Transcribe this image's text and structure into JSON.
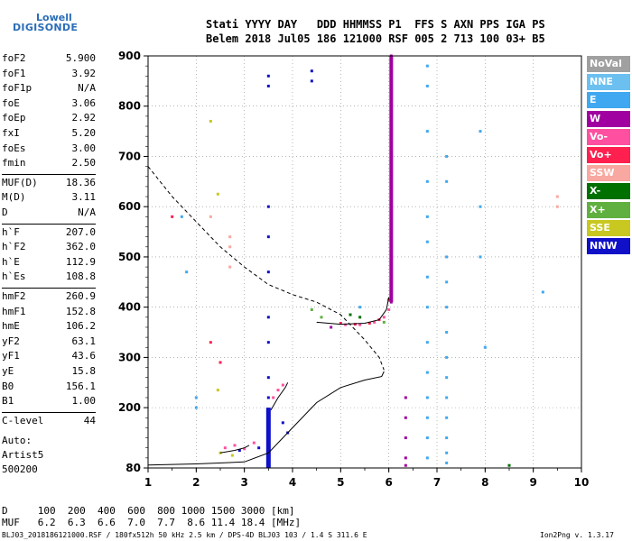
{
  "logo": {
    "top": "Lowell",
    "bottom": "DIGISONDE"
  },
  "header": {
    "line1": "Stati YYYY DAY   DDD HHMMSS P1  FFS S AXN PPS IGA PS",
    "line2": "Belem 2018 Jul05 186 121000 RSF 005 2 713 100 03+ B5"
  },
  "params": [
    {
      "label": "foF2",
      "value": "5.900"
    },
    {
      "label": "foF1",
      "value": "3.92"
    },
    {
      "label": "foF1p",
      "value": "N/A"
    },
    {
      "label": "foE",
      "value": "3.06"
    },
    {
      "label": "foEp",
      "value": "2.92"
    },
    {
      "label": "fxI",
      "value": "5.20"
    },
    {
      "label": "foEs",
      "value": "3.00"
    },
    {
      "label": "fmin",
      "value": "2.50"
    },
    {
      "label": "MUF(D)",
      "value": "18.36"
    },
    {
      "label": "M(D)",
      "value": "3.11"
    },
    {
      "label": "D",
      "value": "N/A"
    },
    {
      "label": "h`F",
      "value": "207.0"
    },
    {
      "label": "h`F2",
      "value": "362.0"
    },
    {
      "label": "h`E",
      "value": "112.9"
    },
    {
      "label": "h`Es",
      "value": "108.8"
    },
    {
      "label": "hmF2",
      "value": "260.9"
    },
    {
      "label": "hmF1",
      "value": "152.8"
    },
    {
      "label": "hmE",
      "value": "106.2"
    },
    {
      "label": "yF2",
      "value": "63.1"
    },
    {
      "label": "yF1",
      "value": "43.6"
    },
    {
      "label": "yE",
      "value": "15.8"
    },
    {
      "label": "B0",
      "value": "156.1"
    },
    {
      "label": "B1",
      "value": "1.00"
    },
    {
      "label": "C-level",
      "value": "44"
    }
  ],
  "extra": {
    "auto": "Auto:",
    "artist": "Artist5",
    "version": "500200"
  },
  "legend": [
    {
      "label": "NoVal",
      "color": "#a0a0a0"
    },
    {
      "label": "NNE",
      "color": "#6cc0f0"
    },
    {
      "label": "E",
      "color": "#40a8f0"
    },
    {
      "label": "W",
      "color": "#a000a0"
    },
    {
      "label": "Vo-",
      "color": "#ff4fa0"
    },
    {
      "label": "Vo+",
      "color": "#ff2050"
    },
    {
      "label": "SSW",
      "color": "#f8a8a0"
    },
    {
      "label": "X-",
      "color": "#007000"
    },
    {
      "label": "X+",
      "color": "#60b040"
    },
    {
      "label": "SSE",
      "color": "#c8c820"
    },
    {
      "label": "NNW",
      "color": "#1010c8"
    }
  ],
  "bottom": {
    "dist_line": "D     100  200  400  600  800 1000 1500 3000 [km]",
    "muf_line": "MUF   6.2  6.3  6.6  7.0  7.7  8.6 11.4 18.4 [MHz]",
    "footer_left": "BLJ03_2018186121000.RSF / 180fx512h 50 kHz 2.5 km / DPS-4D BLJ03 103 / 1.4 S 311.6 E",
    "footer_right": "Ion2Png v. 1.3.17"
  },
  "chart_data": {
    "type": "scatter",
    "title": "",
    "xlabel": "",
    "ylabel": "",
    "xlim": [
      1,
      10
    ],
    "ylim": [
      80,
      900
    ],
    "xticks": [
      "1",
      "2",
      "3",
      "4",
      "5",
      "6",
      "7",
      "8",
      "9",
      "10"
    ],
    "yticks": [
      "80",
      "200",
      "300",
      "400",
      "500",
      "600",
      "700",
      "800",
      "900"
    ],
    "series": [
      {
        "name": "NNW",
        "color": "#1010c8",
        "points": [
          [
            3.5,
            840
          ],
          [
            3.5,
            860
          ],
          [
            3.5,
            600
          ],
          [
            3.5,
            540
          ],
          [
            3.5,
            470
          ],
          [
            3.5,
            380
          ],
          [
            3.5,
            330
          ],
          [
            3.5,
            260
          ],
          [
            3.5,
            220
          ],
          [
            3.5,
            160
          ],
          [
            3.5,
            120
          ],
          [
            3.5,
            100
          ],
          [
            3.5,
            90
          ],
          [
            4.4,
            870
          ],
          [
            4.4,
            850
          ],
          [
            3.8,
            170
          ],
          [
            3.9,
            150
          ],
          [
            3.3,
            120
          ],
          [
            2.9,
            115
          ]
        ]
      },
      {
        "name": "W",
        "color": "#a000a0",
        "points": [
          [
            6.05,
            900
          ],
          [
            6.05,
            850
          ],
          [
            6.05,
            800
          ],
          [
            6.05,
            750
          ],
          [
            6.05,
            700
          ],
          [
            6.05,
            650
          ],
          [
            6.05,
            600
          ],
          [
            6.05,
            550
          ],
          [
            6.05,
            500
          ],
          [
            6.05,
            450
          ],
          [
            6.05,
            410
          ],
          [
            6.35,
            220
          ],
          [
            6.35,
            180
          ],
          [
            6.35,
            140
          ],
          [
            6.35,
            100
          ],
          [
            6.35,
            85
          ],
          [
            4.8,
            360
          ]
        ]
      },
      {
        "name": "E",
        "color": "#40a8f0",
        "points": [
          [
            6.8,
            880
          ],
          [
            6.8,
            840
          ],
          [
            6.8,
            750
          ],
          [
            6.8,
            650
          ],
          [
            6.8,
            580
          ],
          [
            6.8,
            530
          ],
          [
            6.8,
            460
          ],
          [
            6.8,
            400
          ],
          [
            6.8,
            330
          ],
          [
            6.8,
            270
          ],
          [
            6.8,
            220
          ],
          [
            6.8,
            180
          ],
          [
            6.8,
            140
          ],
          [
            6.8,
            100
          ],
          [
            7.2,
            700
          ],
          [
            7.2,
            650
          ],
          [
            7.2,
            500
          ],
          [
            7.2,
            450
          ],
          [
            7.2,
            400
          ],
          [
            7.2,
            350
          ],
          [
            7.2,
            300
          ],
          [
            7.2,
            260
          ],
          [
            7.2,
            220
          ],
          [
            7.2,
            180
          ],
          [
            7.2,
            140
          ],
          [
            7.2,
            110
          ],
          [
            7.2,
            90
          ],
          [
            7.9,
            750
          ],
          [
            7.9,
            600
          ],
          [
            7.9,
            500
          ],
          [
            5.4,
            400
          ],
          [
            8.0,
            320
          ],
          [
            9.2,
            430
          ],
          [
            1.7,
            580
          ],
          [
            1.8,
            470
          ],
          [
            2.0,
            220
          ],
          [
            2.0,
            200
          ]
        ]
      },
      {
        "name": "Vo-",
        "color": "#ff4fa0",
        "points": [
          [
            2.6,
            120
          ],
          [
            2.8,
            125
          ],
          [
            3.0,
            118
          ],
          [
            3.2,
            130
          ],
          [
            3.6,
            220
          ],
          [
            3.7,
            235
          ],
          [
            3.8,
            245
          ],
          [
            5.1,
            365
          ],
          [
            5.4,
            365
          ],
          [
            5.7,
            370
          ],
          [
            5.9,
            380
          ],
          [
            6.0,
            395
          ]
        ]
      },
      {
        "name": "Vo+",
        "color": "#ff2050",
        "points": [
          [
            5.0,
            368
          ],
          [
            5.3,
            366
          ],
          [
            5.6,
            368
          ],
          [
            5.8,
            375
          ],
          [
            6.0,
            415
          ],
          [
            1.5,
            580
          ],
          [
            2.3,
            330
          ],
          [
            2.5,
            290
          ]
        ]
      },
      {
        "name": "SSW",
        "color": "#f8a8a0",
        "points": [
          [
            2.7,
            540
          ],
          [
            2.7,
            520
          ],
          [
            2.7,
            480
          ],
          [
            9.5,
            620
          ],
          [
            9.5,
            600
          ],
          [
            2.3,
            580
          ]
        ]
      },
      {
        "name": "X-",
        "color": "#007000",
        "points": [
          [
            5.2,
            385
          ],
          [
            5.4,
            380
          ],
          [
            8.5,
            85
          ]
        ]
      },
      {
        "name": "X+",
        "color": "#60b040",
        "points": [
          [
            4.4,
            395
          ],
          [
            4.6,
            380
          ],
          [
            5.9,
            370
          ]
        ]
      },
      {
        "name": "SSE",
        "color": "#c8c820",
        "points": [
          [
            2.3,
            770
          ],
          [
            2.45,
            625
          ],
          [
            2.45,
            235
          ],
          [
            2.5,
            110
          ],
          [
            2.75,
            105
          ]
        ]
      }
    ],
    "profile_solid": [
      [
        1.0,
        86
      ],
      [
        2.0,
        88
      ],
      [
        3.0,
        92
      ],
      [
        3.5,
        110
      ],
      [
        4.0,
        160
      ],
      [
        4.5,
        210
      ],
      [
        5.0,
        240
      ],
      [
        5.5,
        255
      ],
      [
        5.85,
        262
      ],
      [
        5.9,
        272
      ]
    ],
    "profile_dashed": [
      [
        1.0,
        680
      ],
      [
        1.5,
        620
      ],
      [
        2.0,
        570
      ],
      [
        2.5,
        520
      ],
      [
        3.0,
        480
      ],
      [
        3.5,
        445
      ],
      [
        4.0,
        425
      ],
      [
        4.5,
        410
      ],
      [
        5.0,
        385
      ],
      [
        5.5,
        335
      ],
      [
        5.8,
        300
      ],
      [
        5.9,
        275
      ]
    ],
    "trace_ordinary": [
      [
        4.5,
        370
      ],
      [
        5.0,
        366
      ],
      [
        5.5,
        368
      ],
      [
        5.8,
        375
      ],
      [
        5.95,
        395
      ],
      [
        6.0,
        420
      ]
    ],
    "trace_e_region": [
      [
        2.5,
        110
      ],
      [
        2.8,
        115
      ],
      [
        3.0,
        120
      ],
      [
        3.1,
        125
      ]
    ],
    "trace_f1": [
      [
        3.55,
        195
      ],
      [
        3.7,
        220
      ],
      [
        3.85,
        240
      ],
      [
        3.9,
        250
      ]
    ]
  }
}
